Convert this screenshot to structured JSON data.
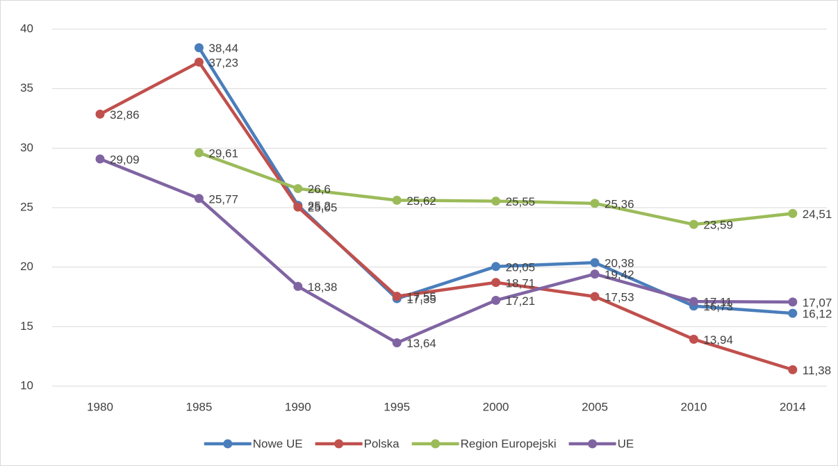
{
  "chart_data": {
    "type": "line",
    "categories": [
      "1980",
      "1985",
      "1990",
      "1995",
      "2000",
      "2005",
      "2010",
      "2014"
    ],
    "series": [
      {
        "name": "Nowe UE",
        "color": "#4a7ebb",
        "values": [
          null,
          38.44,
          25.2,
          17.35,
          20.05,
          20.38,
          16.73,
          16.12
        ],
        "value_labels": [
          null,
          "38,44",
          "25,2",
          "17,35",
          "20,05",
          "20,38",
          "16,73",
          "16,12"
        ]
      },
      {
        "name": "Polska",
        "color": "#c0504d",
        "values": [
          32.86,
          37.23,
          25.05,
          17.55,
          18.71,
          17.53,
          13.94,
          11.38
        ],
        "value_labels": [
          "32,86",
          "37,23",
          "25,05",
          "17,55",
          "18,71",
          "17,53",
          "13,94",
          "11,38"
        ]
      },
      {
        "name": "Region Europejski",
        "color": "#9bbb59",
        "values": [
          null,
          29.61,
          26.6,
          25.62,
          25.55,
          25.36,
          23.59,
          24.51
        ],
        "value_labels": [
          null,
          "29,61",
          "26,6",
          "25,62",
          "25,55",
          "25,36",
          "23,59",
          "24,51"
        ]
      },
      {
        "name": "UE",
        "color": "#8064a2",
        "values": [
          29.09,
          25.77,
          18.38,
          13.64,
          17.21,
          19.42,
          17.11,
          17.07
        ],
        "value_labels": [
          "29,09",
          "25,77",
          "18,38",
          "13,64",
          "17,21",
          "19,42",
          "17,11",
          "17,07"
        ]
      }
    ],
    "ylim": [
      10,
      40
    ],
    "yticks": [
      10,
      15,
      20,
      25,
      30,
      35,
      40
    ],
    "grid": true,
    "legend": "bottom"
  }
}
